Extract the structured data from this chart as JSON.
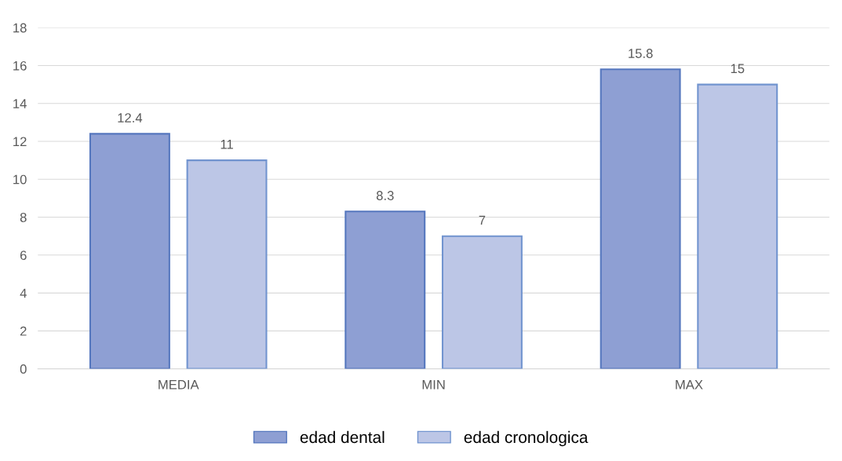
{
  "chart_data": {
    "type": "bar",
    "categories": [
      "MEDIA",
      "MIN",
      "MAX"
    ],
    "series": [
      {
        "name": "edad dental",
        "color": "#8e9fd3",
        "values": [
          12.4,
          8.3,
          15.8
        ]
      },
      {
        "name": "edad cronologica",
        "color": "#bcc6e6",
        "values": [
          11,
          7,
          15
        ]
      }
    ],
    "ylim": [
      0,
      18
    ],
    "yticks": [
      0,
      2,
      4,
      6,
      8,
      10,
      12,
      14,
      16,
      18
    ],
    "grid": "y",
    "legend": "bottom",
    "data_labels": true
  }
}
